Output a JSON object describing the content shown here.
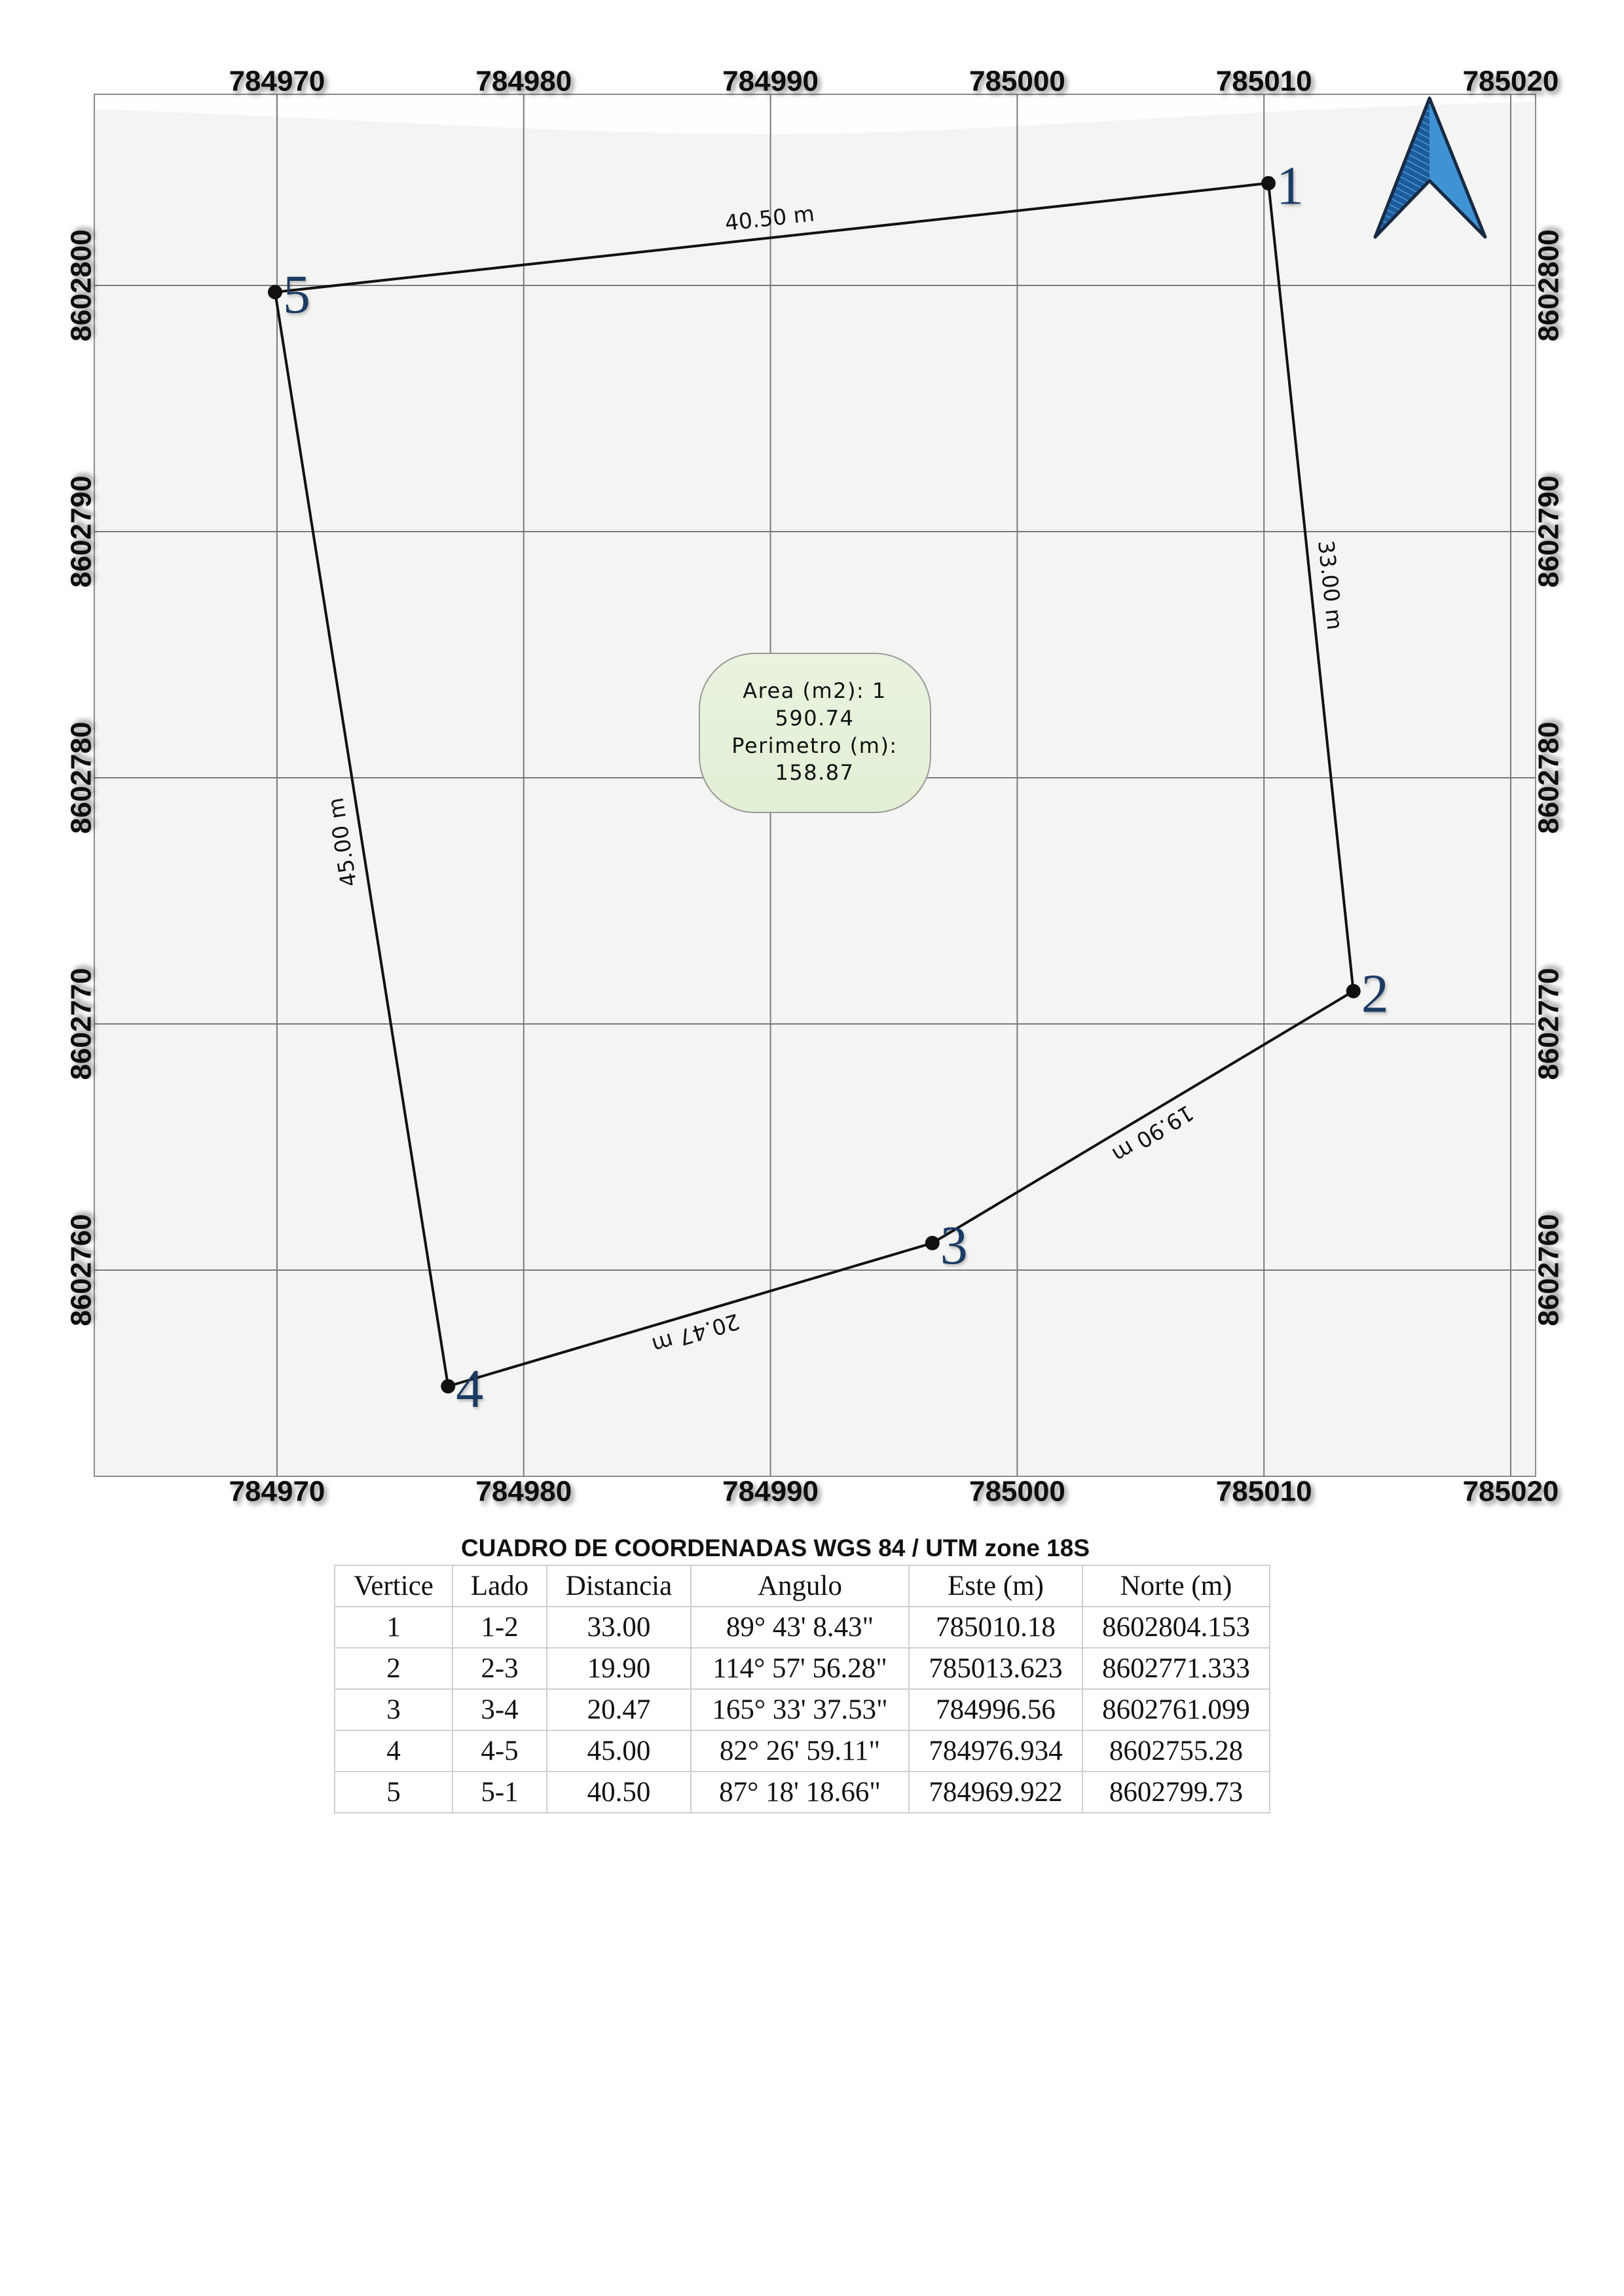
{
  "map": {
    "grid": {
      "x_ticks": [
        784970,
        784980,
        784990,
        785000,
        785010,
        785020
      ],
      "y_ticks": [
        8602760,
        8602770,
        8602780,
        8602790,
        8602800
      ]
    },
    "edge_labels": [
      "33.00 m",
      "19.90 m",
      "20.47 m",
      "45.00 m",
      "40.50 m"
    ],
    "info_box": {
      "lines": [
        "Area (m2): 1",
        "590.74",
        "Perimetro (m):",
        "158.87"
      ]
    },
    "north_arrow": {
      "icon": "north-arrow-icon"
    },
    "colors": {
      "background": "#f4f4f2",
      "grid": "#7a7a7a",
      "boundary": "#111111",
      "vertex_marker": "#111111",
      "vertex_label": "#1f3b63",
      "info_box_fill": "#e2efd4",
      "arrow_dark": "#1c5c9c",
      "arrow_light": "#3f93d4"
    }
  },
  "table": {
    "title": "CUADRO DE COORDENADAS WGS 84 / UTM zone 18S",
    "headers": [
      "Vertice",
      "Lado",
      "Distancia",
      "Angulo",
      "Este (m)",
      "Norte (m)"
    ],
    "rows": [
      {
        "vertice": "1",
        "lado": "1-2",
        "distancia": "33.00",
        "angulo": "89° 43' 8.43\"",
        "este": "785010.18",
        "norte": "8602804.153"
      },
      {
        "vertice": "2",
        "lado": "2-3",
        "distancia": "19.90",
        "angulo": "114° 57' 56.28\"",
        "este": "785013.623",
        "norte": "8602771.333"
      },
      {
        "vertice": "3",
        "lado": "3-4",
        "distancia": "20.47",
        "angulo": "165° 33' 37.53\"",
        "este": "784996.56",
        "norte": "8602761.099"
      },
      {
        "vertice": "4",
        "lado": "4-5",
        "distancia": "45.00",
        "angulo": "82° 26' 59.11\"",
        "este": "784976.934",
        "norte": "8602755.28"
      },
      {
        "vertice": "5",
        "lado": "5-1",
        "distancia": "40.50",
        "angulo": "87° 18' 18.66\"",
        "este": "784969.922",
        "norte": "8602799.73"
      }
    ]
  }
}
